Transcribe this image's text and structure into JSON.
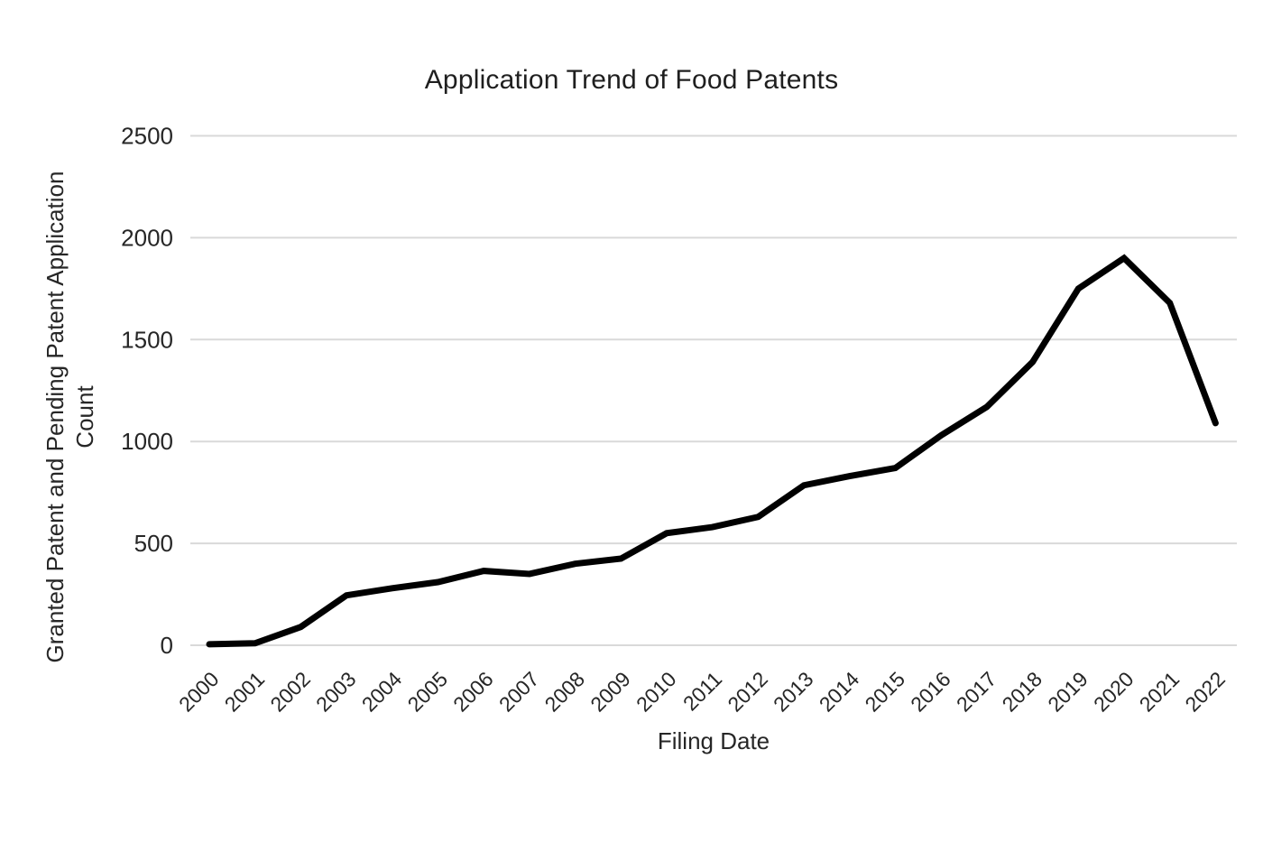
{
  "chart_data": {
    "type": "line",
    "title": "Application Trend of Food Patents",
    "xlabel": "Filing Date",
    "ylabel": "Granted Patent and Pending Patent Application Count",
    "ylabel_lines": [
      "Granted Patent and Pending Patent Application",
      "Count"
    ],
    "categories": [
      "2000",
      "2001",
      "2002",
      "2003",
      "2004",
      "2005",
      "2006",
      "2007",
      "2008",
      "2009",
      "2010",
      "2011",
      "2012",
      "2013",
      "2014",
      "2015",
      "2016",
      "2017",
      "2018",
      "2019",
      "2020",
      "2021",
      "2022"
    ],
    "values": [
      5,
      10,
      90,
      245,
      280,
      310,
      365,
      350,
      400,
      425,
      550,
      580,
      630,
      785,
      830,
      870,
      1030,
      1170,
      1390,
      1750,
      1900,
      1680,
      1090
    ],
    "ylim": [
      0,
      2500
    ],
    "yticks": [
      0,
      500,
      1000,
      1500,
      2000,
      2500
    ],
    "grid": "horizontal",
    "legend": "none",
    "colors": {
      "line": "#000000",
      "gridline": "#d9d9d9",
      "text": "#262626"
    }
  }
}
